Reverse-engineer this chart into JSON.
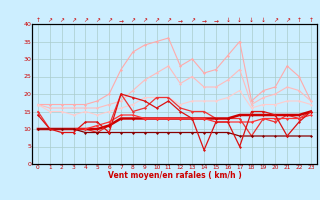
{
  "x": [
    0,
    1,
    2,
    3,
    4,
    5,
    6,
    7,
    8,
    9,
    10,
    11,
    12,
    13,
    14,
    15,
    16,
    17,
    18,
    19,
    20,
    21,
    22,
    23
  ],
  "series": [
    {
      "color": "#ffaaaa",
      "lw": 0.8,
      "y": [
        17,
        17,
        17,
        17,
        17,
        18,
        20,
        27,
        32,
        34,
        35,
        36,
        28,
        30,
        26,
        27,
        31,
        35,
        18,
        21,
        22,
        28,
        25,
        18
      ]
    },
    {
      "color": "#ffbbbb",
      "lw": 0.8,
      "y": [
        17,
        16,
        16,
        16,
        16,
        16,
        17,
        18,
        21,
        24,
        26,
        28,
        23,
        25,
        22,
        22,
        24,
        27,
        17,
        19,
        20,
        22,
        21,
        18
      ]
    },
    {
      "color": "#ffcccc",
      "lw": 0.8,
      "y": [
        17,
        15,
        15,
        14,
        15,
        14,
        15,
        16,
        17,
        19,
        19,
        19,
        17,
        18,
        18,
        18,
        19,
        21,
        16,
        17,
        17,
        18,
        18,
        17
      ]
    },
    {
      "color": "#ee3333",
      "lw": 0.9,
      "y": [
        15,
        10,
        10,
        10,
        10,
        9,
        11,
        20,
        15,
        16,
        19,
        19,
        16,
        15,
        15,
        13,
        13,
        13,
        8,
        13,
        12,
        14,
        13,
        15
      ]
    },
    {
      "color": "#cc0000",
      "lw": 1.8,
      "y": [
        10,
        10,
        10,
        10,
        10,
        10,
        11,
        13,
        13,
        13,
        13,
        13,
        13,
        13,
        13,
        13,
        13,
        14,
        14,
        14,
        14,
        14,
        14,
        15
      ]
    },
    {
      "color": "#ff3333",
      "lw": 0.9,
      "y": [
        10,
        10,
        10,
        10,
        10,
        11,
        12,
        14,
        14,
        13,
        13,
        13,
        13,
        13,
        13,
        12,
        12,
        12,
        12,
        13,
        13,
        13,
        13,
        14
      ]
    },
    {
      "color": "#880000",
      "lw": 0.9,
      "y": [
        10,
        10,
        10,
        10,
        9,
        9,
        9,
        9,
        9,
        9,
        9,
        9,
        9,
        9,
        9,
        9,
        9,
        8,
        8,
        8,
        8,
        8,
        8,
        8
      ]
    },
    {
      "color": "#dd1111",
      "lw": 0.9,
      "y": [
        14,
        10,
        9,
        9,
        12,
        12,
        9,
        20,
        19,
        18,
        16,
        18,
        15,
        13,
        4,
        12,
        12,
        5,
        15,
        15,
        14,
        8,
        12,
        15
      ]
    }
  ],
  "xlabel": "Vent moyen/en rafales ( km/h )",
  "ylim": [
    0,
    40
  ],
  "yticks": [
    0,
    5,
    10,
    15,
    20,
    25,
    30,
    35,
    40
  ],
  "xticks": [
    0,
    1,
    2,
    3,
    4,
    5,
    6,
    7,
    8,
    9,
    10,
    11,
    12,
    13,
    14,
    15,
    16,
    17,
    18,
    19,
    20,
    21,
    22,
    23
  ],
  "bg_color": "#cceeff",
  "grid_color": "#aacccc",
  "tick_color": "#cc0000",
  "arrows": [
    "↑",
    "↗",
    "↗",
    "↗",
    "↗",
    "↗",
    "↗",
    "→",
    "↗",
    "↗",
    "↗",
    "↗",
    "→",
    "↗",
    "→",
    "→",
    "↓",
    "↓",
    "↓",
    "↓",
    "↗",
    "↗",
    "↑",
    "↑"
  ]
}
